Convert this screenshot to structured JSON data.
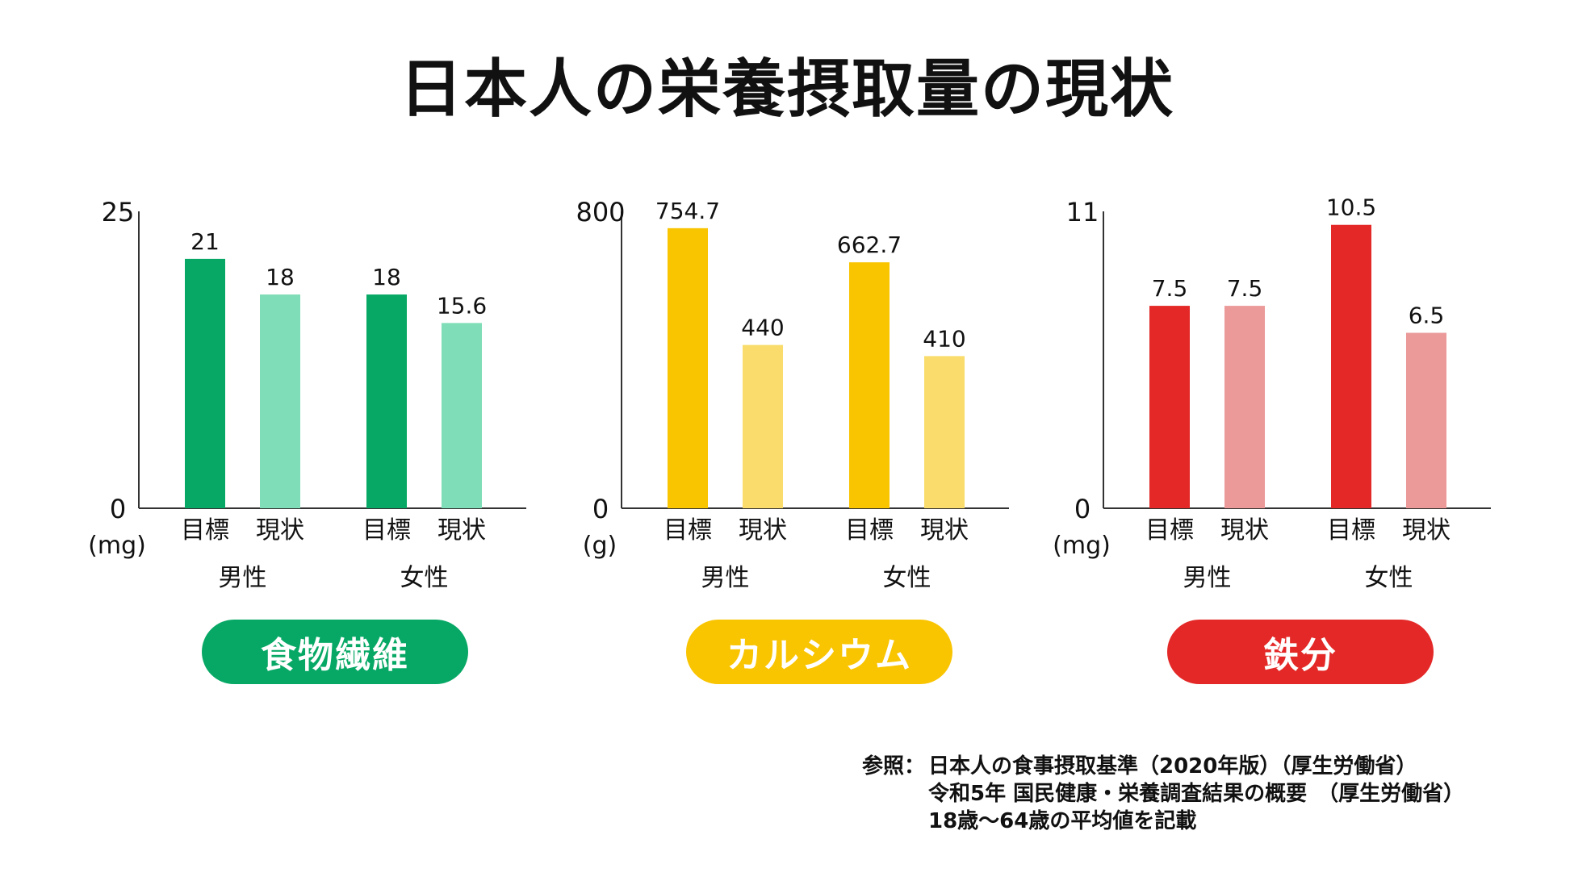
{
  "title": "日本人の栄養摂取量の現状",
  "colors": {
    "fiber_dark": "#07A865",
    "fiber_light": "#7FDDB7",
    "calcium_dark": "#F9C400",
    "calcium_light": "#F9DC6B",
    "iron_dark": "#E32827",
    "iron_light": "#EB9A99"
  },
  "chart_data": [
    {
      "type": "bar",
      "title": "食物繊維",
      "unit": "(mg)",
      "ylim": [
        0,
        25
      ],
      "yticks": [
        0,
        25
      ],
      "groups": [
        "男性",
        "女性"
      ],
      "categories": [
        "目標",
        "現状",
        "目標",
        "現状"
      ],
      "values": [
        21,
        18,
        18,
        15.6
      ],
      "value_labels": [
        "21",
        "18",
        "18",
        "15.6"
      ],
      "colors": [
        "#07A865",
        "#7FDDB7",
        "#07A865",
        "#7FDDB7"
      ]
    },
    {
      "type": "bar",
      "title": "カルシウム",
      "unit": "(g)",
      "ylim": [
        0,
        800
      ],
      "yticks": [
        0,
        800
      ],
      "groups": [
        "男性",
        "女性"
      ],
      "categories": [
        "目標",
        "現状",
        "目標",
        "現状"
      ],
      "values": [
        754.7,
        440,
        662.7,
        410
      ],
      "value_labels": [
        "754.7",
        "440",
        "662.7",
        "410"
      ],
      "colors": [
        "#F9C400",
        "#F9DC6B",
        "#F9C400",
        "#F9DC6B"
      ]
    },
    {
      "type": "bar",
      "title": "鉄分",
      "unit": "(mg)",
      "ylim": [
        0,
        11
      ],
      "yticks": [
        0,
        11
      ],
      "groups": [
        "男性",
        "女性"
      ],
      "categories": [
        "目標",
        "現状",
        "目標",
        "現状"
      ],
      "values": [
        7.5,
        7.5,
        10.5,
        6.5
      ],
      "value_labels": [
        "7.5",
        "7.5",
        "10.5",
        "6.5"
      ],
      "colors": [
        "#E32827",
        "#EB9A99",
        "#E32827",
        "#EB9A99"
      ]
    }
  ],
  "reference": {
    "label": "参照：",
    "lines": [
      "日本人の食事摂取基準（2020年版）（厚生労働省）",
      "令和5年 国民健康・栄養調査結果の概要　（厚生労働省）",
      "18歳〜64歳の平均値を記載"
    ]
  }
}
